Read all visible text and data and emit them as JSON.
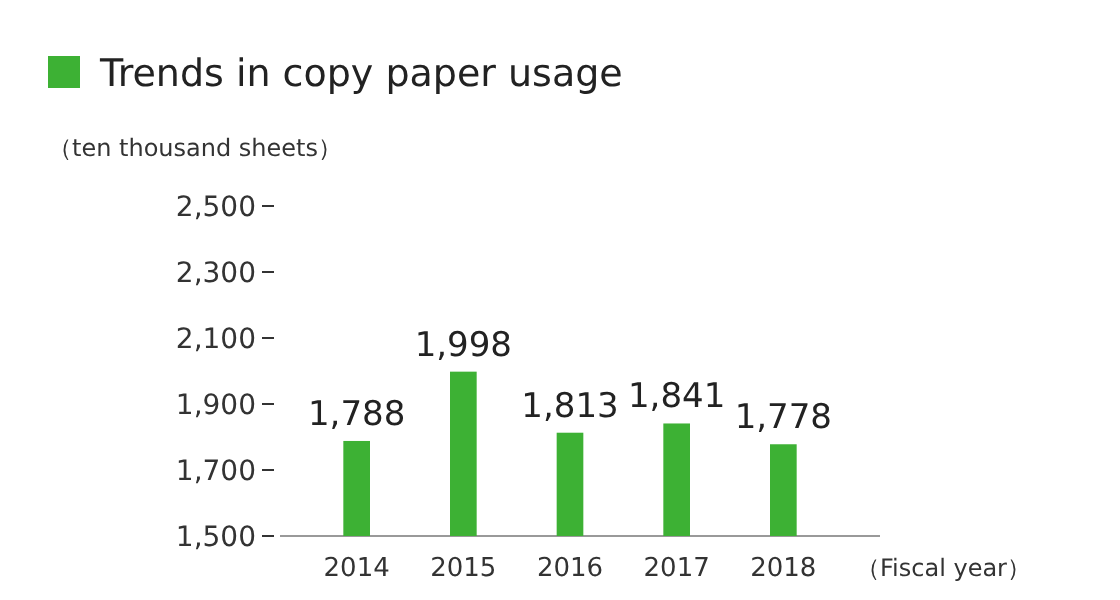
{
  "chart_data": {
    "type": "bar",
    "title": "Trends in copy paper usage",
    "ylabel": "（ten thousand sheets）",
    "xlabel": "（Fiscal year）",
    "categories": [
      "2014",
      "2015",
      "2016",
      "2017",
      "2018"
    ],
    "values": [
      1788,
      1998,
      1813,
      1841,
      1778
    ],
    "color": "#3db134",
    "ylim": [
      1500,
      2500
    ],
    "yticks": [
      {
        "value": 1500,
        "label": "1,500"
      },
      {
        "value": 1700,
        "label": "1,700"
      },
      {
        "value": 1900,
        "label": "1,900"
      },
      {
        "value": 2100,
        "label": "2,100"
      },
      {
        "value": 2300,
        "label": "2,300"
      },
      {
        "value": 2500,
        "label": "2,500"
      }
    ],
    "value_labels": [
      "1,788",
      "1,998",
      "1,813",
      "1,841",
      "1,778"
    ],
    "grid": false
  }
}
